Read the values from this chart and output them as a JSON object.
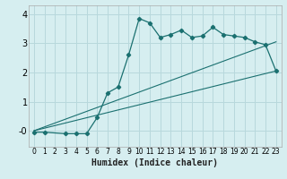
{
  "xlabel": "Humidex (Indice chaleur)",
  "bg_color": "#d6eef0",
  "grid_color": "#b8d8dc",
  "line_color": "#1a7070",
  "line1_x": [
    0,
    1,
    3,
    4,
    5,
    6,
    7,
    8,
    9,
    10,
    11,
    12,
    13,
    14,
    15,
    16,
    17,
    18,
    19,
    20,
    21,
    22,
    23
  ],
  "line1_y": [
    -0.05,
    -0.05,
    -0.1,
    -0.1,
    -0.1,
    0.45,
    1.3,
    1.5,
    2.6,
    3.85,
    3.7,
    3.2,
    3.3,
    3.45,
    3.2,
    3.25,
    3.55,
    3.3,
    3.25,
    3.2,
    3.05,
    2.95,
    2.05
  ],
  "line2_x": [
    0,
    23
  ],
  "line2_y": [
    0.0,
    2.05
  ],
  "line3_x": [
    0,
    23
  ],
  "line3_y": [
    0.0,
    3.05
  ],
  "xlim": [
    -0.5,
    23.5
  ],
  "ylim": [
    -0.55,
    4.3
  ],
  "xticks": [
    0,
    1,
    2,
    3,
    4,
    5,
    6,
    7,
    8,
    9,
    10,
    11,
    12,
    13,
    14,
    15,
    16,
    17,
    18,
    19,
    20,
    21,
    22,
    23
  ],
  "yticks": [
    0,
    1,
    2,
    3,
    4
  ],
  "ytick_labels": [
    "-0",
    "1",
    "2",
    "3",
    "4"
  ]
}
